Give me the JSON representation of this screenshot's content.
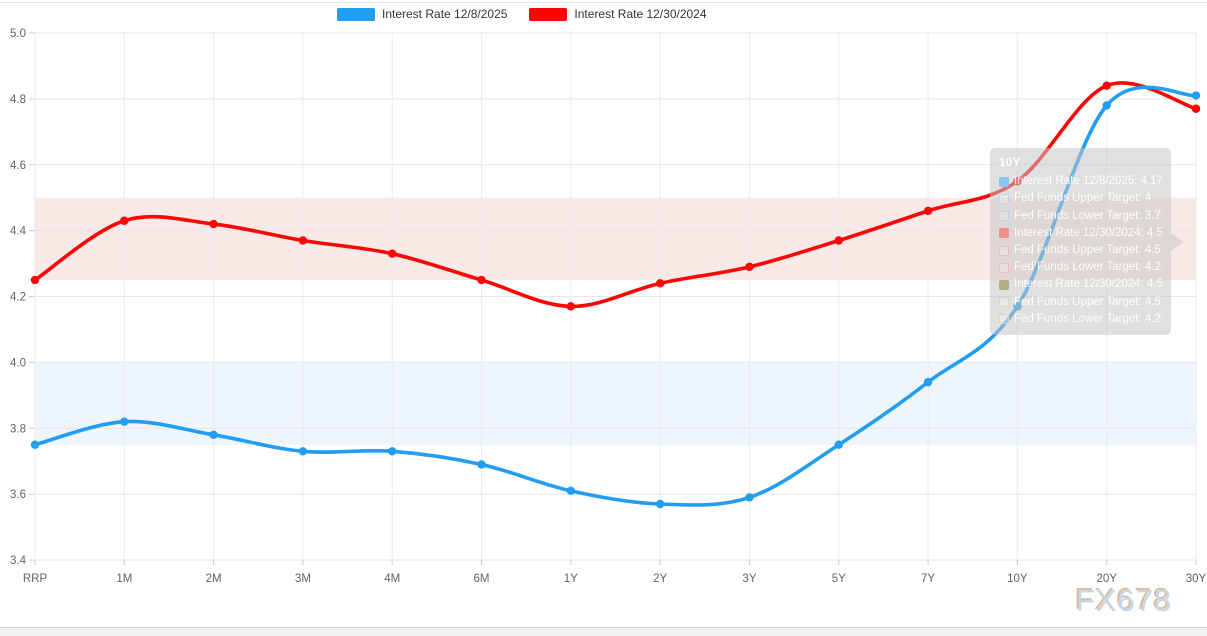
{
  "watermark": "FX678",
  "legend": {
    "items": [
      {
        "label": "Interest Rate 12/8/2025",
        "color": "#219df2"
      },
      {
        "label": "Interest Rate 12/30/2024",
        "color": "#fb0505"
      }
    ]
  },
  "tooltip": {
    "title": "10Y",
    "rows": [
      {
        "label": "Interest Rate 12/8/2025: 4.17",
        "swatch": "#8cc5ef",
        "filled": true
      },
      {
        "label": "Fed Funds Upper Target: 4",
        "swatch": "#b9d9f2",
        "filled": false
      },
      {
        "label": "Fed Funds Lower Target: 3.75",
        "swatch": "#b9d9f2",
        "filled": false
      },
      {
        "label": "Interest Rate 12/30/2024: 4.55",
        "swatch": "#ea938c",
        "filled": true
      },
      {
        "label": "Fed Funds Upper Target: 4.5",
        "swatch": "#f2bcb8",
        "filled": false
      },
      {
        "label": "Fed Funds Lower Target: 4.25",
        "swatch": "#f2bcb8",
        "filled": false
      },
      {
        "label": "Interest Rate 12/30/2024: 4.55",
        "swatch": "#b5ae85",
        "filled": true
      },
      {
        "label": "Fed Funds Upper Target: 4.5",
        "swatch": "#dcd8b2",
        "filled": false
      },
      {
        "label": "Fed Funds Lower Target: 4.25",
        "swatch": "#dcd8b2",
        "filled": false
      }
    ]
  },
  "chart_data": {
    "type": "line",
    "title": "",
    "xlabel": "",
    "ylabel": "",
    "categories": [
      "RRP",
      "1M",
      "2M",
      "3M",
      "4M",
      "6M",
      "1Y",
      "2Y",
      "3Y",
      "5Y",
      "7Y",
      "10Y",
      "20Y",
      "30Y"
    ],
    "series": [
      {
        "name": "Interest Rate 12/8/2025",
        "color": "#219df2",
        "values": [
          3.75,
          3.82,
          3.78,
          3.73,
          3.73,
          3.69,
          3.61,
          3.57,
          3.59,
          3.75,
          3.94,
          4.17,
          4.78,
          4.81
        ]
      },
      {
        "name": "Interest Rate 12/30/2024",
        "color": "#fb0505",
        "values": [
          4.25,
          4.43,
          4.42,
          4.37,
          4.33,
          4.25,
          4.17,
          4.24,
          4.29,
          4.37,
          4.46,
          4.55,
          4.84,
          4.77
        ]
      }
    ],
    "bands": [
      {
        "name": "Fed Funds Target Range 12/8/2025",
        "from": 3.75,
        "to": 4.0,
        "color": "#eff5fc"
      },
      {
        "name": "Fed Funds Target Range 12/30/2024",
        "from": 4.25,
        "to": 4.5,
        "color": "#faeae7"
      }
    ],
    "ylim": [
      3.4,
      5.0
    ],
    "yticks": [
      "5.0",
      "4.8",
      "4.6",
      "4.4",
      "4.2",
      "4.0",
      "3.8",
      "3.6",
      "3.4"
    ],
    "grid": true,
    "legend_position": "top"
  }
}
